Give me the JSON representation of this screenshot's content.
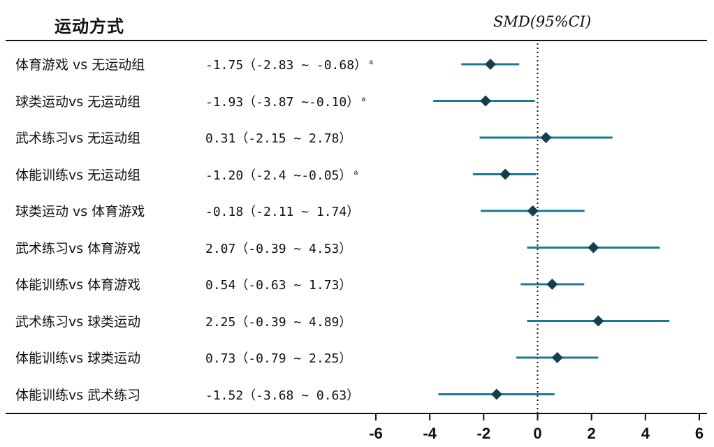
{
  "header": {
    "left_title": "运动方式",
    "right_title": "SMD(95%CI)"
  },
  "chart_data": {
    "type": "forest",
    "xlim": [
      -6,
      6
    ],
    "xticks": [
      "-6",
      "-4",
      "-2",
      "0",
      "2",
      "4",
      "6"
    ],
    "reference_line": 0,
    "colors": {
      "ci_line": "#1a7a93",
      "marker": "#153f4c",
      "text": "#111111"
    },
    "rows": [
      {
        "label": "体育游戏 vs 无运动组",
        "smd": -1.75,
        "lo": -2.83,
        "hi": -0.68,
        "text": "-1.75（-2.83 ~ -0.68）",
        "sup": "a"
      },
      {
        "label": "球类运动vs 无运动组",
        "smd": -1.93,
        "lo": -3.87,
        "hi": -0.1,
        "text": "-1.93（-3.87 ~-0.10）",
        "sup": "a"
      },
      {
        "label": "武术练习vs 无运动组",
        "smd": 0.31,
        "lo": -2.15,
        "hi": 2.78,
        "text": "0.31（-2.15 ~ 2.78）",
        "sup": ""
      },
      {
        "label": "体能训练vs 无运动组",
        "smd": -1.2,
        "lo": -2.4,
        "hi": -0.05,
        "text": "-1.20（-2.4 ~-0.05）",
        "sup": "a"
      },
      {
        "label": "球类运动 vs 体育游戏",
        "smd": -0.18,
        "lo": -2.11,
        "hi": 1.74,
        "text": "-0.18（-2.11 ~ 1.74）",
        "sup": ""
      },
      {
        "label": "武术练习vs 体育游戏",
        "smd": 2.07,
        "lo": -0.39,
        "hi": 4.53,
        "text": "2.07（-0.39 ~ 4.53）",
        "sup": ""
      },
      {
        "label": "体能训练vs 体育游戏",
        "smd": 0.54,
        "lo": -0.63,
        "hi": 1.73,
        "text": "0.54（-0.63 ~ 1.73）",
        "sup": ""
      },
      {
        "label": "武术练习vs 球类运动",
        "smd": 2.25,
        "lo": -0.39,
        "hi": 4.89,
        "text": "2.25（-0.39 ~ 4.89）",
        "sup": ""
      },
      {
        "label": "体能训练vs 球类运动",
        "smd": 0.73,
        "lo": -0.79,
        "hi": 2.25,
        "text": "0.73（-0.79 ~ 2.25）",
        "sup": ""
      },
      {
        "label": "体能训练vs 武术练习",
        "smd": -1.52,
        "lo": -3.68,
        "hi": 0.63,
        "text": "-1.52（-3.68 ~ 0.63）",
        "sup": ""
      }
    ]
  }
}
